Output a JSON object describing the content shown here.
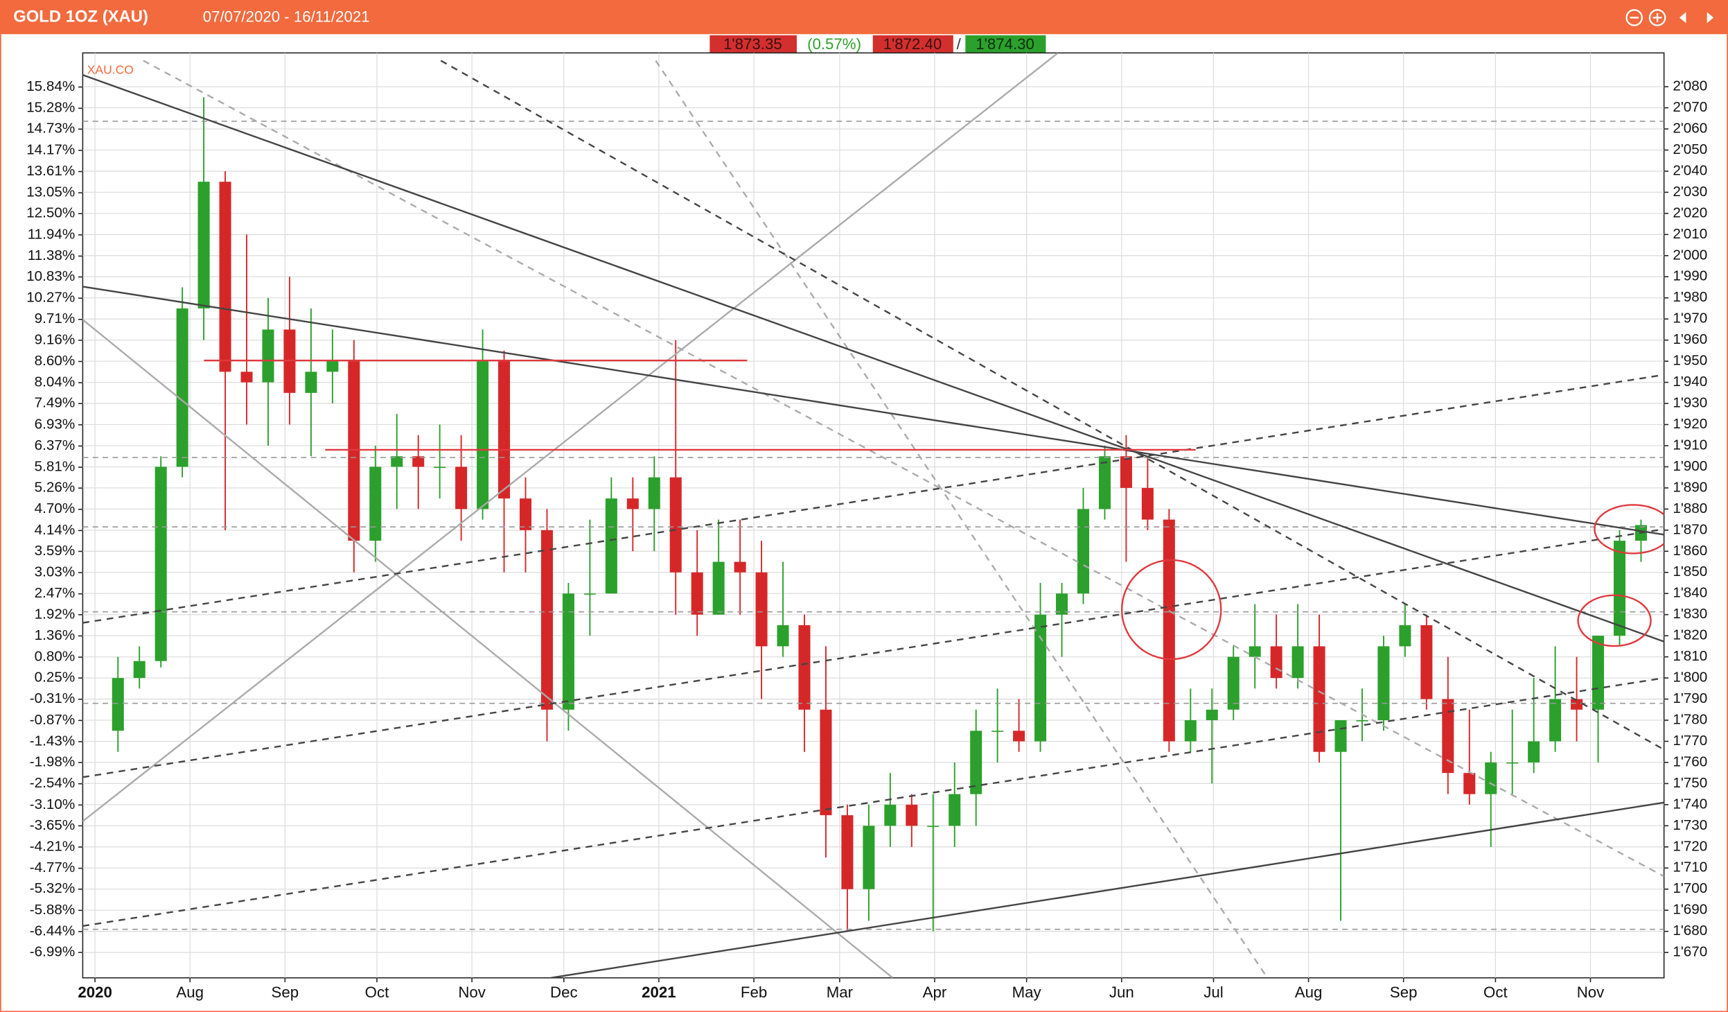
{
  "chart_data": {
    "type": "candlestick",
    "title": "GOLD 1OZ (XAU)",
    "subtitle": "07/07/2020 - 16/11/2021",
    "symbol": "XAU.CO",
    "quote": {
      "last": "1'873.35",
      "change": "(0.57%)",
      "bid": "1'872.40",
      "separator": "/",
      "ask": "1'874.30"
    },
    "xlim": [
      "2020-06-27",
      "2021-11-25"
    ],
    "xticks": [
      {
        "value": "2020-07-01",
        "label": "2020"
      },
      {
        "value": "2020-08-01",
        "label": "Aug"
      },
      {
        "value": "2020-09-01",
        "label": "Sep"
      },
      {
        "value": "2020-10-01",
        "label": "Oct"
      },
      {
        "value": "2020-11-01",
        "label": "Nov"
      },
      {
        "value": "2020-12-01",
        "label": "Dec"
      },
      {
        "value": "2021-01-01",
        "label": "2021"
      },
      {
        "value": "2021-02-01",
        "label": "Feb"
      },
      {
        "value": "2021-03-01",
        "label": "Mar"
      },
      {
        "value": "2021-04-01",
        "label": "Apr"
      },
      {
        "value": "2021-05-01",
        "label": "May"
      },
      {
        "value": "2021-06-01",
        "label": "Jun"
      },
      {
        "value": "2021-07-01",
        "label": "Jul"
      },
      {
        "value": "2021-08-01",
        "label": "Aug"
      },
      {
        "value": "2021-09-01",
        "label": "Sep"
      },
      {
        "value": "2021-10-01",
        "label": "Oct"
      },
      {
        "value": "2021-11-01",
        "label": "Nov"
      }
    ],
    "ylim": [
      -7.66,
      16.74
    ],
    "yticks": [
      {
        "value": 15.84,
        "label": "15.84%"
      },
      {
        "value": 15.28,
        "label": "15.28%"
      },
      {
        "value": 14.73,
        "label": "14.73%"
      },
      {
        "value": 14.17,
        "label": "14.17%"
      },
      {
        "value": 13.61,
        "label": "13.61%"
      },
      {
        "value": 13.05,
        "label": "13.05%"
      },
      {
        "value": 12.5,
        "label": "12.50%"
      },
      {
        "value": 11.94,
        "label": "11.94%"
      },
      {
        "value": 11.38,
        "label": "11.38%"
      },
      {
        "value": 10.83,
        "label": "10.83%"
      },
      {
        "value": 10.27,
        "label": "10.27%"
      },
      {
        "value": 9.71,
        "label": "9.71%"
      },
      {
        "value": 9.16,
        "label": "9.16%"
      },
      {
        "value": 8.6,
        "label": "8.60%"
      },
      {
        "value": 8.04,
        "label": "8.04%"
      },
      {
        "value": 7.49,
        "label": "7.49%"
      },
      {
        "value": 6.93,
        "label": "6.93%"
      },
      {
        "value": 6.37,
        "label": "6.37%"
      },
      {
        "value": 5.81,
        "label": "5.81%"
      },
      {
        "value": 5.26,
        "label": "5.26%"
      },
      {
        "value": 4.7,
        "label": "4.70%"
      },
      {
        "value": 4.14,
        "label": "4.14%"
      },
      {
        "value": 3.59,
        "label": "3.59%"
      },
      {
        "value": 3.03,
        "label": "3.03%"
      },
      {
        "value": 2.47,
        "label": "2.47%"
      },
      {
        "value": 1.92,
        "label": "1.92%"
      },
      {
        "value": 1.36,
        "label": "1.36%"
      },
      {
        "value": 0.8,
        "label": "0.80%"
      },
      {
        "value": 0.25,
        "label": "0.25%"
      },
      {
        "value": -0.31,
        "label": "-0.31%"
      },
      {
        "value": -0.87,
        "label": "-0.87%"
      },
      {
        "value": -1.43,
        "label": "-1.43%"
      },
      {
        "value": -1.98,
        "label": "-1.98%"
      },
      {
        "value": -2.54,
        "label": "-2.54%"
      },
      {
        "value": -3.1,
        "label": "-3.10%"
      },
      {
        "value": -3.65,
        "label": "-3.65%"
      },
      {
        "value": -4.21,
        "label": "-4.21%"
      },
      {
        "value": -4.77,
        "label": "-4.77%"
      },
      {
        "value": -5.32,
        "label": "-5.32%"
      },
      {
        "value": -5.88,
        "label": "-5.88%"
      },
      {
        "value": -6.44,
        "label": "-6.44%"
      },
      {
        "value": -6.99,
        "label": "-6.99%"
      }
    ],
    "y2lim": [
      1658,
      2096
    ],
    "y2ticks": [
      {
        "value": 2080,
        "label": "2'080"
      },
      {
        "value": 2070,
        "label": "2'070"
      },
      {
        "value": 2060,
        "label": "2'060"
      },
      {
        "value": 2050,
        "label": "2'050"
      },
      {
        "value": 2040,
        "label": "2'040"
      },
      {
        "value": 2030,
        "label": "2'030"
      },
      {
        "value": 2020,
        "label": "2'020"
      },
      {
        "value": 2010,
        "label": "2'010"
      },
      {
        "value": 2000,
        "label": "2'000"
      },
      {
        "value": 1990,
        "label": "1'990"
      },
      {
        "value": 1980,
        "label": "1'980"
      },
      {
        "value": 1970,
        "label": "1'970"
      },
      {
        "value": 1960,
        "label": "1'960"
      },
      {
        "value": 1950,
        "label": "1'950"
      },
      {
        "value": 1940,
        "label": "1'940"
      },
      {
        "value": 1930,
        "label": "1'930"
      },
      {
        "value": 1920,
        "label": "1'920"
      },
      {
        "value": 1910,
        "label": "1'910"
      },
      {
        "value": 1900,
        "label": "1'900"
      },
      {
        "value": 1890,
        "label": "1'890"
      },
      {
        "value": 1880,
        "label": "1'880"
      },
      {
        "value": 1870,
        "label": "1'870"
      },
      {
        "value": 1860,
        "label": "1'860"
      },
      {
        "value": 1850,
        "label": "1'850"
      },
      {
        "value": 1840,
        "label": "1'840"
      },
      {
        "value": 1830,
        "label": "1'830"
      },
      {
        "value": 1820,
        "label": "1'820"
      },
      {
        "value": 1810,
        "label": "1'810"
      },
      {
        "value": 1800,
        "label": "1'800"
      },
      {
        "value": 1790,
        "label": "1'790"
      },
      {
        "value": 1780,
        "label": "1'780"
      },
      {
        "value": 1770,
        "label": "1'770"
      },
      {
        "value": 1760,
        "label": "1'760"
      },
      {
        "value": 1750,
        "label": "1'750"
      },
      {
        "value": 1740,
        "label": "1'740"
      },
      {
        "value": 1730,
        "label": "1'730"
      },
      {
        "value": 1720,
        "label": "1'720"
      },
      {
        "value": 1710,
        "label": "1'710"
      },
      {
        "value": 1700,
        "label": "1'700"
      },
      {
        "value": 1690,
        "label": "1'690"
      },
      {
        "value": 1680,
        "label": "1'680"
      },
      {
        "value": 1670,
        "label": "1'670"
      }
    ],
    "grid": true,
    "up_color": "#2ca02c",
    "down_color": "#d62728",
    "candles": {
      "axis": "y2",
      "x": [
        "2020-07-06",
        "2020-07-13",
        "2020-07-20",
        "2020-07-27",
        "2020-08-03",
        "2020-08-10",
        "2020-08-17",
        "2020-08-24",
        "2020-08-31",
        "2020-09-07",
        "2020-09-14",
        "2020-09-21",
        "2020-09-28",
        "2020-10-05",
        "2020-10-12",
        "2020-10-19",
        "2020-10-26",
        "2020-11-02",
        "2020-11-09",
        "2020-11-16",
        "2020-11-23",
        "2020-11-30",
        "2020-12-07",
        "2020-12-14",
        "2020-12-21",
        "2020-12-28",
        "2021-01-04",
        "2021-01-11",
        "2021-01-18",
        "2021-01-25",
        "2021-02-01",
        "2021-02-08",
        "2021-02-15",
        "2021-02-22",
        "2021-03-01",
        "2021-03-08",
        "2021-03-15",
        "2021-03-22",
        "2021-03-29",
        "2021-04-05",
        "2021-04-12",
        "2021-04-19",
        "2021-04-26",
        "2021-05-03",
        "2021-05-10",
        "2021-05-17",
        "2021-05-24",
        "2021-05-31",
        "2021-06-07",
        "2021-06-14",
        "2021-06-21",
        "2021-06-28",
        "2021-07-05",
        "2021-07-12",
        "2021-07-19",
        "2021-07-26",
        "2021-08-02",
        "2021-08-09",
        "2021-08-16",
        "2021-08-23",
        "2021-08-30",
        "2021-09-06",
        "2021-09-13",
        "2021-09-20",
        "2021-09-27",
        "2021-10-04",
        "2021-10-11",
        "2021-10-18",
        "2021-10-25",
        "2021-11-01",
        "2021-11-08",
        "2021-11-15"
      ],
      "open": [
        1775,
        1800,
        1808,
        1900,
        1975,
        2035,
        1945,
        1940,
        1965,
        1935,
        1945,
        1950,
        1865,
        1900,
        1905,
        1900,
        1900,
        1880,
        1950,
        1885,
        1870,
        1785,
        1840,
        1840,
        1885,
        1880,
        1895,
        1850,
        1830,
        1855,
        1850,
        1815,
        1825,
        1785,
        1735,
        1700,
        1730,
        1740,
        1730,
        1730,
        1745,
        1775,
        1775,
        1770,
        1830,
        1840,
        1880,
        1905,
        1890,
        1875,
        1770,
        1780,
        1785,
        1810,
        1815,
        1800,
        1815,
        1765,
        1780,
        1780,
        1815,
        1825,
        1790,
        1755,
        1745,
        1760,
        1760,
        1770,
        1790,
        1785,
        1820,
        1865
      ],
      "high": [
        1810,
        1815,
        1905,
        1985,
        2075,
        2040,
        2010,
        1980,
        1990,
        1975,
        1965,
        1960,
        1910,
        1925,
        1915,
        1920,
        1915,
        1965,
        1955,
        1895,
        1880,
        1845,
        1875,
        1895,
        1895,
        1905,
        1960,
        1870,
        1875,
        1875,
        1865,
        1855,
        1830,
        1815,
        1740,
        1740,
        1755,
        1745,
        1745,
        1760,
        1785,
        1795,
        1790,
        1845,
        1845,
        1890,
        1910,
        1915,
        1905,
        1880,
        1795,
        1795,
        1815,
        1835,
        1830,
        1835,
        1830,
        1780,
        1795,
        1820,
        1835,
        1830,
        1810,
        1785,
        1765,
        1785,
        1800,
        1815,
        1810,
        1820,
        1870,
        1875
      ],
      "low": [
        1765,
        1795,
        1805,
        1895,
        1960,
        1870,
        1920,
        1910,
        1920,
        1905,
        1930,
        1850,
        1855,
        1880,
        1880,
        1885,
        1865,
        1875,
        1850,
        1850,
        1770,
        1775,
        1820,
        1840,
        1860,
        1860,
        1830,
        1820,
        1830,
        1830,
        1790,
        1810,
        1765,
        1715,
        1680,
        1685,
        1720,
        1720,
        1680,
        1720,
        1730,
        1760,
        1765,
        1765,
        1810,
        1835,
        1875,
        1855,
        1870,
        1765,
        1765,
        1750,
        1780,
        1795,
        1795,
        1795,
        1760,
        1685,
        1770,
        1775,
        1810,
        1785,
        1745,
        1740,
        1720,
        1745,
        1755,
        1765,
        1770,
        1760,
        1815,
        1855
      ],
      "close": [
        1800,
        1808,
        1900,
        1975,
        2035,
        1945,
        1940,
        1965,
        1935,
        1945,
        1950,
        1865,
        1900,
        1905,
        1900,
        1900,
        1880,
        1950,
        1885,
        1870,
        1785,
        1840,
        1840,
        1885,
        1880,
        1895,
        1850,
        1830,
        1855,
        1850,
        1815,
        1825,
        1785,
        1735,
        1700,
        1730,
        1740,
        1730,
        1730,
        1745,
        1775,
        1775,
        1770,
        1830,
        1840,
        1880,
        1905,
        1890,
        1875,
        1770,
        1780,
        1785,
        1810,
        1815,
        1800,
        1815,
        1765,
        1780,
        1780,
        1815,
        1825,
        1790,
        1755,
        1745,
        1760,
        1760,
        1770,
        1790,
        1785,
        1820,
        1865,
        1872.4
      ]
    }
  }
}
